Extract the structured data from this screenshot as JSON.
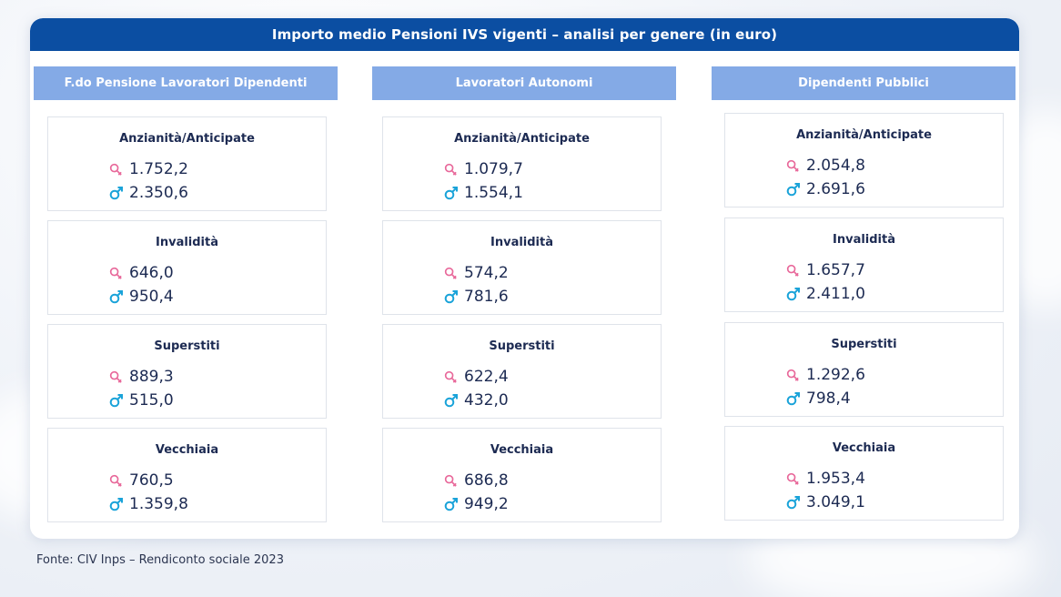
{
  "title": "Importo medio Pensioni IVS vigenti – analisi per genere (in euro)",
  "source": "Fonte: CIV Inps – Rendiconto sociale 2023",
  "colors": {
    "header": "#0b4ea2",
    "column_header": "#84aae6",
    "female": "#e8689a",
    "male": "#1aa3d9"
  },
  "icons": {
    "female": "female-sign-icon",
    "male": "male-sign-icon"
  },
  "columns": [
    {
      "name": "F.do Pensione Lavoratori Dipendenti",
      "cards": [
        {
          "label": "Anzianità/Anticipate",
          "female": "1.752,2",
          "male": "2.350,6"
        },
        {
          "label": "Invalidità",
          "female": "646,0",
          "male": "950,4"
        },
        {
          "label": "Superstiti",
          "female": "889,3",
          "male": "515,0"
        },
        {
          "label": "Vecchiaia",
          "female": "760,5",
          "male": "1.359,8"
        }
      ]
    },
    {
      "name": "Lavoratori Autonomi",
      "cards": [
        {
          "label": "Anzianità/Anticipate",
          "female": "1.079,7",
          "male": "1.554,1"
        },
        {
          "label": "Invalidità",
          "female": "574,2",
          "male": "781,6"
        },
        {
          "label": "Superstiti",
          "female": "622,4",
          "male": "432,0"
        },
        {
          "label": "Vecchiaia",
          "female": "686,8",
          "male": "949,2"
        }
      ]
    },
    {
      "name": "Dipendenti Pubblici",
      "cards": [
        {
          "label": "Anzianità/Anticipate",
          "female": "2.054,8",
          "male": "2.691,6"
        },
        {
          "label": "Invalidità",
          "female": "1.657,7",
          "male": "2.411,0"
        },
        {
          "label": "Superstiti",
          "female": "1.292,6",
          "male": "798,4"
        },
        {
          "label": "Vecchiaia",
          "female": "1.953,4",
          "male": "3.049,1"
        }
      ]
    }
  ]
}
